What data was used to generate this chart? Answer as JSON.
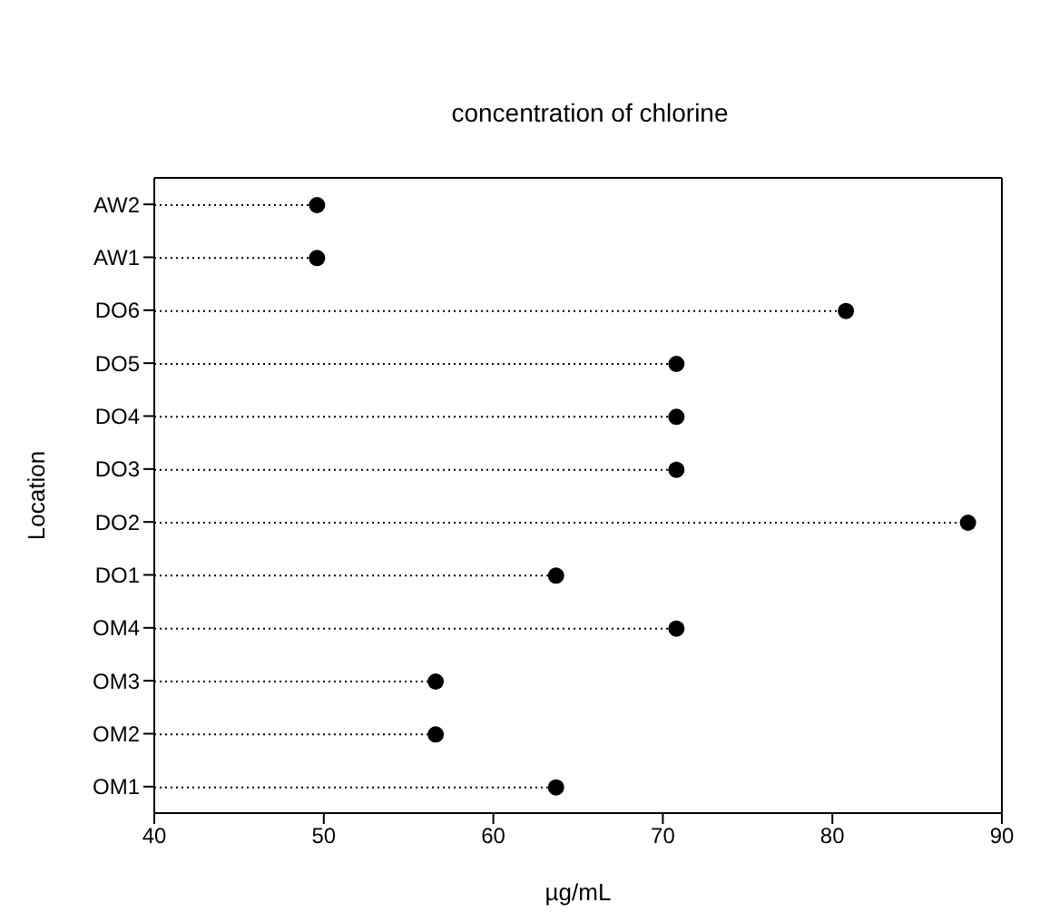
{
  "chart_data": {
    "type": "lollipop",
    "orientation": "horizontal",
    "title": "concentration of chlorine",
    "xlabel": "µg/mL",
    "ylabel": "Location",
    "categories": [
      "AW2",
      "AW1",
      "DO6",
      "DO5",
      "DO4",
      "DO3",
      "DO2",
      "DO1",
      "OM4",
      "OM3",
      "OM2",
      "OM1"
    ],
    "values": [
      49.6,
      49.6,
      80.8,
      70.8,
      70.8,
      70.8,
      88,
      63.7,
      70.8,
      56.6,
      56.6,
      63.7
    ],
    "color": "#000000",
    "xlim": [
      40,
      90
    ],
    "xticks": [
      40,
      50,
      60,
      70,
      80,
      90
    ],
    "marker": "circle",
    "line_style": "dotted"
  }
}
